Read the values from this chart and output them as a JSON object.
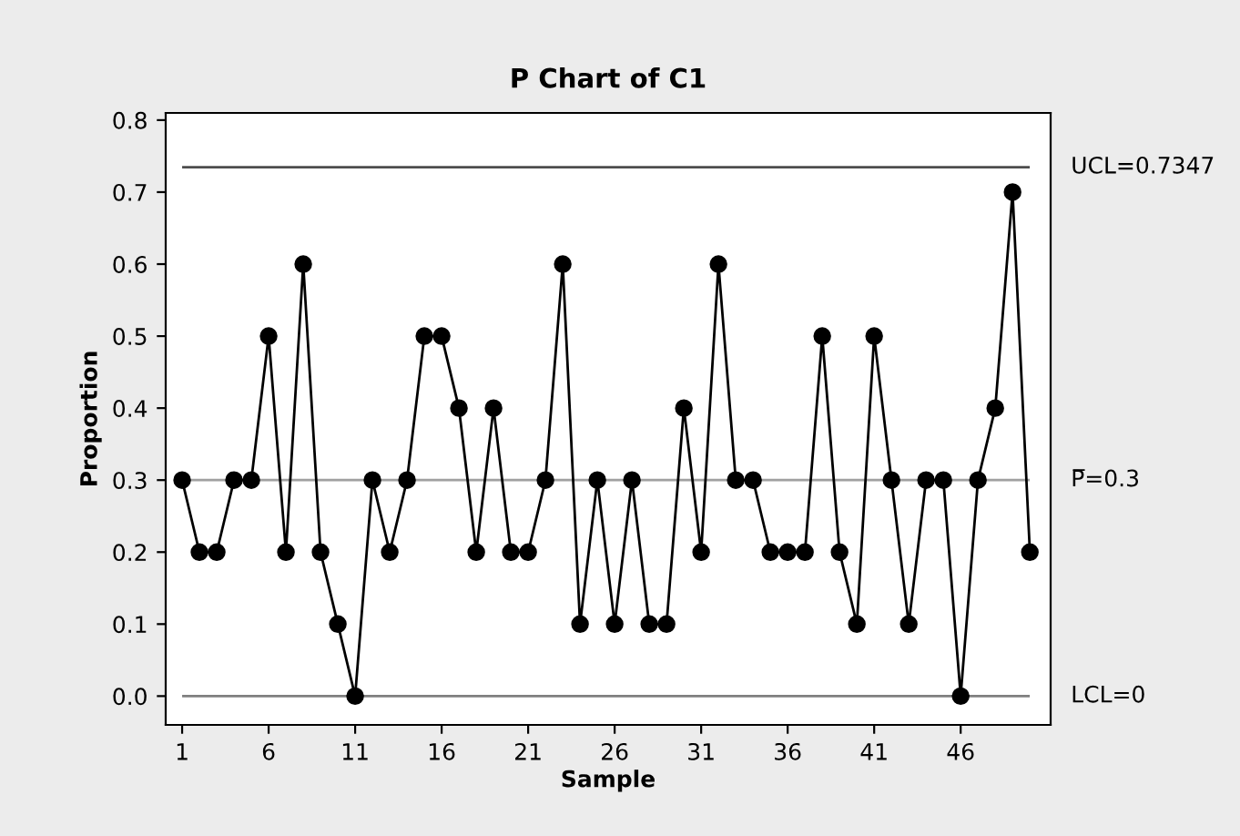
{
  "chart_data": {
    "type": "line",
    "title": "P Chart of C1",
    "xlabel": "Sample",
    "ylabel": "Proportion",
    "x": [
      1,
      2,
      3,
      4,
      5,
      6,
      7,
      8,
      9,
      10,
      11,
      12,
      13,
      14,
      15,
      16,
      17,
      18,
      19,
      20,
      21,
      22,
      23,
      24,
      25,
      26,
      27,
      28,
      29,
      30,
      31,
      32,
      33,
      34,
      35,
      36,
      37,
      38,
      39,
      40,
      41,
      42,
      43,
      44,
      45,
      46,
      47,
      48,
      49,
      50
    ],
    "series": [
      {
        "color": "#000000",
        "values": [
          0.3,
          0.2,
          0.2,
          0.3,
          0.3,
          0.5,
          0.2,
          0.6,
          0.2,
          0.1,
          0.0,
          0.3,
          0.2,
          0.3,
          0.5,
          0.5,
          0.4,
          0.2,
          0.4,
          0.2,
          0.2,
          0.3,
          0.6,
          0.1,
          0.3,
          0.1,
          0.3,
          0.1,
          0.1,
          0.4,
          0.2,
          0.6,
          0.3,
          0.3,
          0.2,
          0.2,
          0.2,
          0.5,
          0.2,
          0.1,
          0.5,
          0.3,
          0.1,
          0.3,
          0.3,
          0.0,
          0.3,
          0.4,
          0.7,
          0.2
        ]
      }
    ],
    "xlim": [
      0.05,
      51.2
    ],
    "xticks": [
      1,
      6,
      11,
      16,
      21,
      26,
      31,
      36,
      41,
      46
    ],
    "ylim": [
      -0.04,
      0.81
    ],
    "yticks": [
      {
        "value": 0,
        "label": "0.0"
      },
      0.1,
      0.2,
      0.3,
      0.4,
      0.5,
      0.6,
      0.7,
      0.8
    ],
    "ref_lines": [
      {
        "axis": "y",
        "value": 0.7347,
        "label": "UCL=0.7347",
        "color": "#4d4d4d"
      },
      {
        "axis": "y",
        "value": 0.3,
        "label": "P̅=0.3",
        "color": "#a0a0a0"
      },
      {
        "axis": "y",
        "value": 0,
        "label": "LCL=0",
        "color": "#7f7f7f"
      }
    ],
    "marker": "circle",
    "line_style": "solid",
    "grid": false,
    "legend": false
  }
}
